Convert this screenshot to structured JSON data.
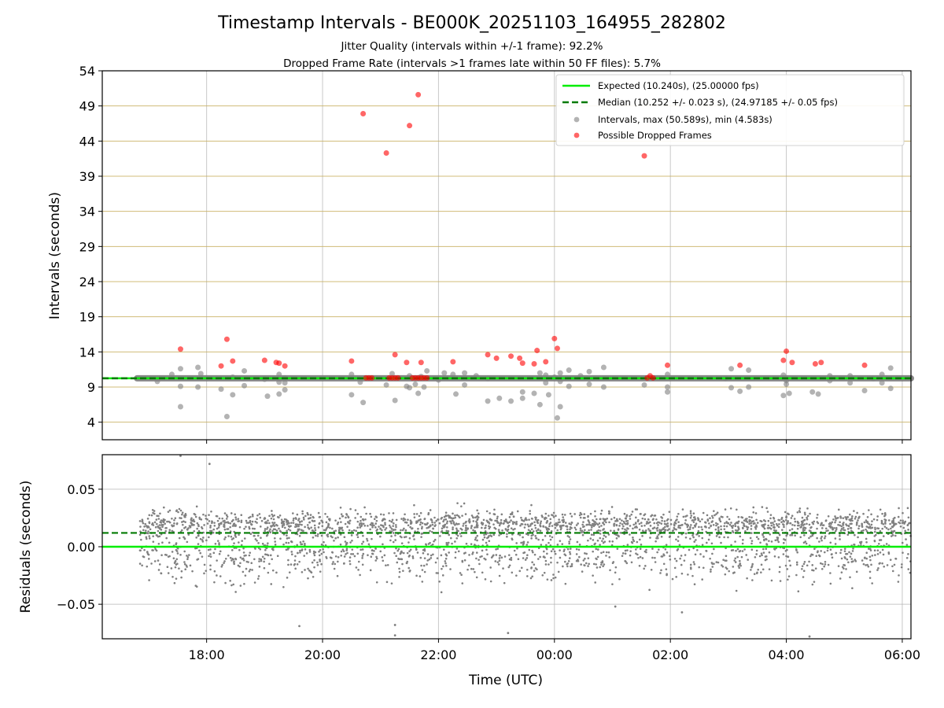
{
  "chart_data": [
    {
      "type": "scatter",
      "title": "Timestamp Intervals - BE000K_20251103_164955_282802",
      "subtitle_lines": [
        "Jitter Quality (intervals within +/-1 frame): 92.2%",
        "Dropped Frame Rate (intervals >1 frames late within 50 FF files): 5.7%"
      ],
      "ylabel": "Intervals (seconds)",
      "ylim": [
        1.5,
        54
      ],
      "yticks": [
        "4",
        "9",
        "14",
        "19",
        "24",
        "29",
        "34",
        "39",
        "44",
        "49",
        "54"
      ],
      "yticks_values": [
        4,
        9,
        14,
        19,
        24,
        29,
        34,
        39,
        44,
        49,
        54
      ],
      "x_range_hours": [
        16.2,
        30.15
      ],
      "grid": true,
      "expected_value": 10.24,
      "median_value": 10.252,
      "dense_band": {
        "x_start_hour": 16.8,
        "x_end_hour": 30.15,
        "value": 10.24
      },
      "legend_position": "top-right",
      "legend": [
        "Expected (10.240s), (25.00000 fps)",
        "Median (10.252 +/- 0.023 s), (24.97185 +/- 0.05 fps)",
        "Intervals, max (50.589s), min (4.583s)",
        "Possible Dropped Frames"
      ],
      "series": [
        {
          "name": "Intervals, max (50.589s), min (4.583s)",
          "color": "#808080",
          "points": [
            [
              17.15,
              9.8
            ],
            [
              17.4,
              10.8
            ],
            [
              17.55,
              11.6
            ],
            [
              17.55,
              9.1
            ],
            [
              17.55,
              6.2
            ],
            [
              17.85,
              11.8
            ],
            [
              17.85,
              9.0
            ],
            [
              17.9,
              10.9
            ],
            [
              18.25,
              8.7
            ],
            [
              18.35,
              4.8
            ],
            [
              18.45,
              10.4
            ],
            [
              18.45,
              7.9
            ],
            [
              18.65,
              11.3
            ],
            [
              18.65,
              9.2
            ],
            [
              19.0,
              10.1
            ],
            [
              19.05,
              7.7
            ],
            [
              19.25,
              10.8
            ],
            [
              19.25,
              9.7
            ],
            [
              19.25,
              8.0
            ],
            [
              19.35,
              10.3
            ],
            [
              19.35,
              9.6
            ],
            [
              19.35,
              8.6
            ],
            [
              20.5,
              10.8
            ],
            [
              20.5,
              7.9
            ],
            [
              20.65,
              9.7
            ],
            [
              20.7,
              6.8
            ],
            [
              21.1,
              9.3
            ],
            [
              21.2,
              10.9
            ],
            [
              21.25,
              7.1
            ],
            [
              21.45,
              9.1
            ],
            [
              21.5,
              8.9
            ],
            [
              21.5,
              10.6
            ],
            [
              21.6,
              9.4
            ],
            [
              21.65,
              8.1
            ],
            [
              21.7,
              10.5
            ],
            [
              21.75,
              9.0
            ],
            [
              21.8,
              11.3
            ],
            [
              22.0,
              10.0
            ],
            [
              22.1,
              11.0
            ],
            [
              22.25,
              10.8
            ],
            [
              22.3,
              8.0
            ],
            [
              22.45,
              11.0
            ],
            [
              22.45,
              9.3
            ],
            [
              22.65,
              10.6
            ],
            [
              22.85,
              10.2
            ],
            [
              22.85,
              7.0
            ],
            [
              23.05,
              7.4
            ],
            [
              23.25,
              7.0
            ],
            [
              23.45,
              8.3
            ],
            [
              23.45,
              7.4
            ],
            [
              23.65,
              8.1
            ],
            [
              23.75,
              6.5
            ],
            [
              23.75,
              11.0
            ],
            [
              23.85,
              10.7
            ],
            [
              23.85,
              9.6
            ],
            [
              23.9,
              7.9
            ],
            [
              24.0,
              10.4
            ],
            [
              24.05,
              4.6
            ],
            [
              24.1,
              11.0
            ],
            [
              24.1,
              9.8
            ],
            [
              24.1,
              6.2
            ],
            [
              24.25,
              11.4
            ],
            [
              24.25,
              9.1
            ],
            [
              24.45,
              10.6
            ],
            [
              24.6,
              11.2
            ],
            [
              24.6,
              9.4
            ],
            [
              24.85,
              11.8
            ],
            [
              24.85,
              9.0
            ],
            [
              25.55,
              9.3
            ],
            [
              25.95,
              9.0
            ],
            [
              25.95,
              8.3
            ],
            [
              25.95,
              10.8
            ],
            [
              26.95,
              10.2
            ],
            [
              27.05,
              11.6
            ],
            [
              27.05,
              8.9
            ],
            [
              27.2,
              8.4
            ],
            [
              27.35,
              11.4
            ],
            [
              27.35,
              9.0
            ],
            [
              27.95,
              10.7
            ],
            [
              27.95,
              7.8
            ],
            [
              28.0,
              9.4
            ],
            [
              28.0,
              9.9
            ],
            [
              28.05,
              8.1
            ],
            [
              28.45,
              8.3
            ],
            [
              28.55,
              8.0
            ],
            [
              28.75,
              10.6
            ],
            [
              28.75,
              9.9
            ],
            [
              29.1,
              10.6
            ],
            [
              29.1,
              9.6
            ],
            [
              29.35,
              8.5
            ],
            [
              29.65,
              9.6
            ],
            [
              29.65,
              10.8
            ],
            [
              29.8,
              11.7
            ],
            [
              29.8,
              8.8
            ],
            [
              29.5,
              10.2
            ]
          ]
        },
        {
          "name": "Possible Dropped Frames",
          "color": "#ff0000",
          "points": [
            [
              17.55,
              14.4
            ],
            [
              18.25,
              12.0
            ],
            [
              18.35,
              15.8
            ],
            [
              18.45,
              12.7
            ],
            [
              19.0,
              12.8
            ],
            [
              19.2,
              12.5
            ],
            [
              19.25,
              12.4
            ],
            [
              19.35,
              12.0
            ],
            [
              20.5,
              12.7
            ],
            [
              20.7,
              47.9
            ],
            [
              20.75,
              10.3
            ],
            [
              20.8,
              10.3
            ],
            [
              20.85,
              10.3
            ],
            [
              21.1,
              42.3
            ],
            [
              21.15,
              10.3
            ],
            [
              21.2,
              10.3
            ],
            [
              21.25,
              13.6
            ],
            [
              21.25,
              10.3
            ],
            [
              21.3,
              10.3
            ],
            [
              21.45,
              12.5
            ],
            [
              21.5,
              46.2
            ],
            [
              21.55,
              10.3
            ],
            [
              21.6,
              10.3
            ],
            [
              21.65,
              50.6
            ],
            [
              21.65,
              10.3
            ],
            [
              21.7,
              12.5
            ],
            [
              21.7,
              10.3
            ],
            [
              21.75,
              10.3
            ],
            [
              21.8,
              10.3
            ],
            [
              22.25,
              12.6
            ],
            [
              22.85,
              13.6
            ],
            [
              23.0,
              13.1
            ],
            [
              23.25,
              13.4
            ],
            [
              23.4,
              13.1
            ],
            [
              23.45,
              12.4
            ],
            [
              23.65,
              12.3
            ],
            [
              23.7,
              14.2
            ],
            [
              23.85,
              12.6
            ],
            [
              24.0,
              15.9
            ],
            [
              24.05,
              14.5
            ],
            [
              25.55,
              41.9
            ],
            [
              25.6,
              10.3
            ],
            [
              25.65,
              10.6
            ],
            [
              25.7,
              10.3
            ],
            [
              25.95,
              12.1
            ],
            [
              27.2,
              12.1
            ],
            [
              27.95,
              12.8
            ],
            [
              28.0,
              14.1
            ],
            [
              28.1,
              12.5
            ],
            [
              28.5,
              12.3
            ],
            [
              28.6,
              12.5
            ],
            [
              29.35,
              12.1
            ]
          ]
        }
      ]
    },
    {
      "type": "scatter",
      "xlabel": "Time (UTC)",
      "ylabel": "Residuals (seconds)",
      "ylim": [
        -0.08,
        0.08
      ],
      "yticks": [
        "0.05",
        "0.00",
        "−0.05"
      ],
      "yticks_values": [
        0.05,
        0,
        -0.05
      ],
      "xticks": [
        "18:00",
        "20:00",
        "22:00",
        "00:00",
        "02:00",
        "04:00",
        "06:00"
      ],
      "xticks_hours": [
        18,
        20,
        22,
        24,
        26,
        28,
        30
      ],
      "x_range_hours": [
        16.2,
        30.15
      ],
      "grid": true,
      "expected_value": 0.0,
      "median_value": 0.012,
      "residual_cloud": {
        "x_start_hour": 16.85,
        "x_end_hour": 30.15,
        "point_count": 3000,
        "upper_band_center": 0.02,
        "lower_band_center": -0.005,
        "color": "#808080"
      },
      "outliers": [
        [
          17.55,
          0.079
        ],
        [
          18.05,
          0.072
        ],
        [
          19.6,
          -0.069
        ],
        [
          21.25,
          -0.068
        ],
        [
          21.25,
          -0.077
        ],
        [
          23.2,
          -0.075
        ],
        [
          25.05,
          -0.052
        ],
        [
          26.2,
          -0.057
        ],
        [
          28.4,
          -0.078
        ]
      ]
    }
  ]
}
